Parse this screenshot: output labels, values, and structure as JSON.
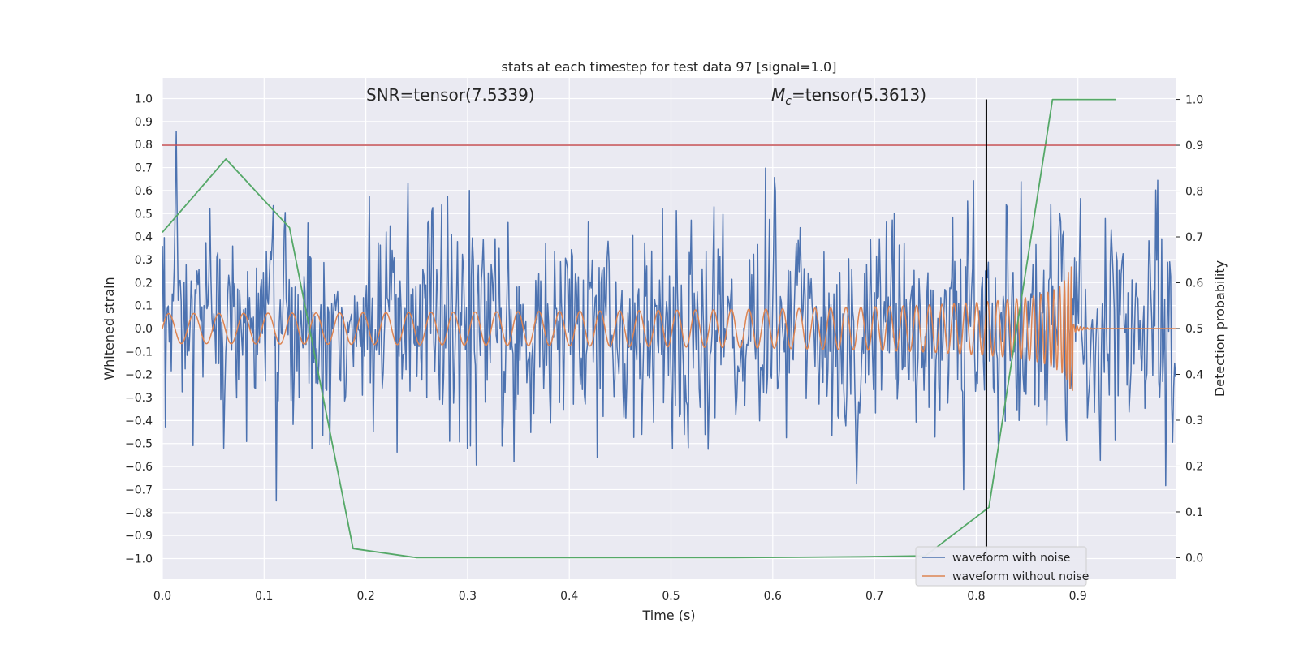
{
  "chart_data": {
    "type": "line",
    "title": "stats at each timestep for test data 97 [signal=1.0]",
    "xlabel": "Time (s)",
    "ylabel": "Whitened strain",
    "y2label": "Detection probability",
    "xlim": [
      0.0,
      0.996
    ],
    "ylim": [
      -1.09,
      1.09
    ],
    "y2lim": [
      -0.047,
      1.047
    ],
    "xticks": [
      "0.0",
      "0.1",
      "0.2",
      "0.3",
      "0.4",
      "0.5",
      "0.6",
      "0.7",
      "0.8",
      "0.9"
    ],
    "yticks": [
      "−1.0",
      "−0.9",
      "−0.8",
      "−0.7",
      "−0.6",
      "−0.5",
      "−0.4",
      "−0.3",
      "−0.2",
      "−0.1",
      "0.0",
      "0.1",
      "0.2",
      "0.3",
      "0.4",
      "0.5",
      "0.6",
      "0.7",
      "0.8",
      "0.9",
      "1.0"
    ],
    "y2ticks": [
      "0.0",
      "0.1",
      "0.2",
      "0.3",
      "0.4",
      "0.5",
      "0.6",
      "0.7",
      "0.8",
      "0.9",
      "1.0"
    ],
    "grid": true,
    "annotations": {
      "snr": "SNR=tensor(7.5339)",
      "mc_symbol": "M",
      "mc_subscript": "c",
      "mc_value": "=tensor(5.3613)"
    },
    "threshold": {
      "axis": "y2",
      "value": 0.9,
      "color": "#c44e52"
    },
    "marker_line": {
      "x": 0.81,
      "y2_from": 0.0,
      "y2_to": 1.0,
      "color": "#000000"
    },
    "series": [
      {
        "name": "waveform with noise",
        "color": "#4c72b0",
        "axis": "y",
        "kind": "noise",
        "x_range": [
          0.0,
          0.996
        ],
        "points": 1024,
        "amplitude": 0.28
      },
      {
        "name": "waveform without noise",
        "color": "#dd8452",
        "axis": "y",
        "kind": "chirp",
        "x_range": [
          0.0,
          0.996
        ],
        "merger_time": 0.895,
        "start_frequency": 40,
        "start_amplitude": 0.065,
        "peak_amplitude": 0.27
      },
      {
        "name": "",
        "color": "#55a868",
        "axis": "y2",
        "kind": "probability",
        "x": [
          0.0,
          0.0625,
          0.125,
          0.1875,
          0.25,
          0.3125,
          0.375,
          0.4375,
          0.5,
          0.5625,
          0.625,
          0.6875,
          0.75,
          0.8125,
          0.875,
          0.9375
        ],
        "values": [
          0.71,
          0.87,
          0.72,
          0.02,
          0.0,
          0.0,
          0.0,
          0.0,
          0.0,
          0.0,
          0.001,
          0.002,
          0.004,
          0.11,
          1.0,
          1.0
        ]
      }
    ],
    "legend": {
      "placement": "lower-right",
      "entries": [
        "waveform with noise",
        "waveform without noise"
      ]
    }
  }
}
